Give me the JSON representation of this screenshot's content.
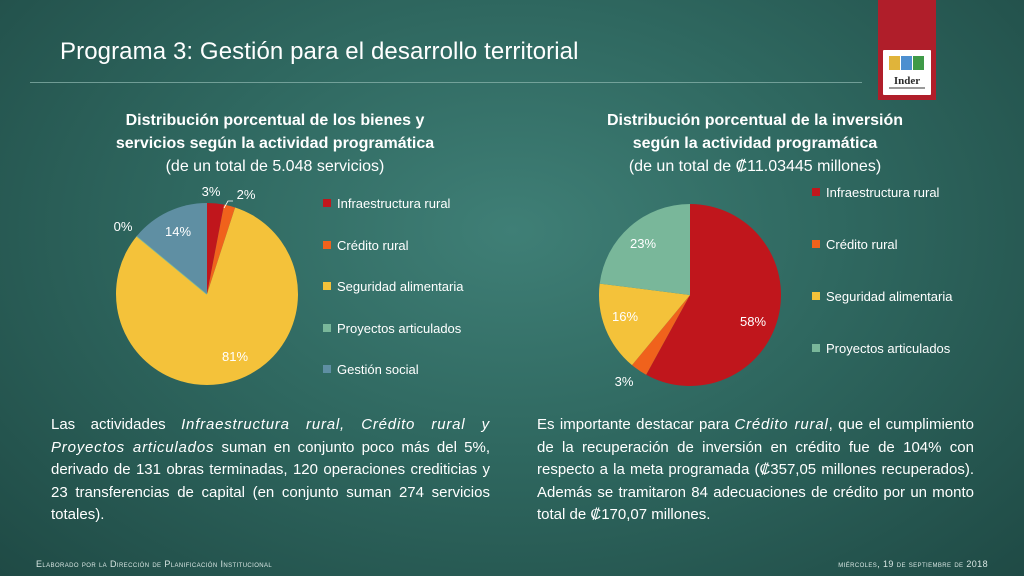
{
  "header": {
    "title": "Programa 3: Gestión para el desarrollo territorial",
    "logo_text": "Inder"
  },
  "colors": {
    "Infraestructura rural": "#c0161c",
    "Crédito rural": "#f0621c",
    "Seguridad alimentaria": "#f4c23a",
    "Proyectos articulados": "#79b79a",
    "Gestión social": "#5f8fa3"
  },
  "chart_data": [
    {
      "type": "pie",
      "title_line1": "Distribución porcentual de los bienes y",
      "title_line2": "servicios según la actividad programática",
      "subtitle": "(de un total de 5.048 servicios)",
      "categories": [
        "Infraestructura rural",
        "Crédito rural",
        "Seguridad alimentaria",
        "Proyectos articulados",
        "Gestión social"
      ],
      "values": [
        3,
        2,
        81,
        0,
        14
      ],
      "labels": [
        "3%",
        "2%",
        "81%",
        "0%",
        "14%"
      ]
    },
    {
      "type": "pie",
      "title_line1": "Distribución porcentual de la inversión",
      "title_line2": "según la actividad programática",
      "subtitle": "(de un total de ₡11.03445 millones)",
      "categories": [
        "Infraestructura rural",
        "Crédito rural",
        "Seguridad alimentaria",
        "Proyectos articulados"
      ],
      "values": [
        58,
        3,
        16,
        23
      ],
      "labels": [
        "58%",
        "3%",
        "16%",
        "23%"
      ]
    }
  ],
  "left_text": {
    "p1": "Las actividades ",
    "i1": "Infraestructura rural, Crédito rural",
    "p2": " y ",
    "i2": "Proyectos articulados",
    "p3": " suman en conjunto poco más del 5%, derivado de 131 obras terminadas, 120 operaciones crediticias y 23 transferencias de capital (en conjunto suman 274 servicios totales)."
  },
  "right_text": {
    "p1": "Es importante destacar para ",
    "i1": "Crédito rural",
    "p2": ", que el cumplimiento de la recuperación de inversión en crédito fue de 104% con respecto a la meta programada (₡357,05 millones recuperados). Además se tramitaron 84 adecuaciones de crédito por un monto total de ₡170,07 millones."
  },
  "footer": {
    "left": "Elaborado por la Dirección de Planificación Institucional",
    "right": "miércoles, 19 de septiembre de 2018"
  }
}
